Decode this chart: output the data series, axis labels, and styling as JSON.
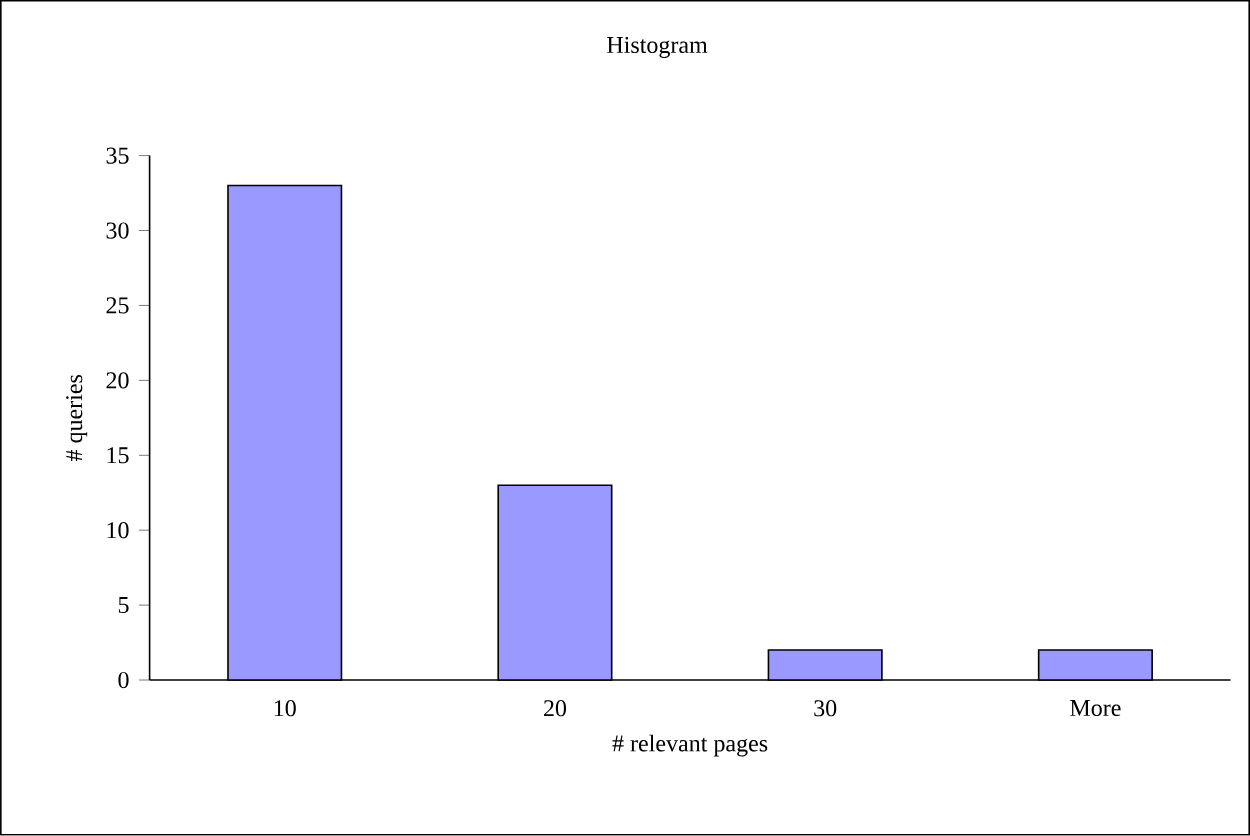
{
  "chart_data": {
    "type": "bar",
    "title": "Histogram",
    "xlabel": "# relevant pages",
    "ylabel": "# queries",
    "categories": [
      "10",
      "20",
      "30",
      "More"
    ],
    "values": [
      33,
      13,
      2,
      2
    ],
    "color": "#9999ff",
    "ylim": [
      0,
      35
    ],
    "yticks": [
      0,
      5,
      10,
      15,
      20,
      25,
      30,
      35
    ]
  }
}
